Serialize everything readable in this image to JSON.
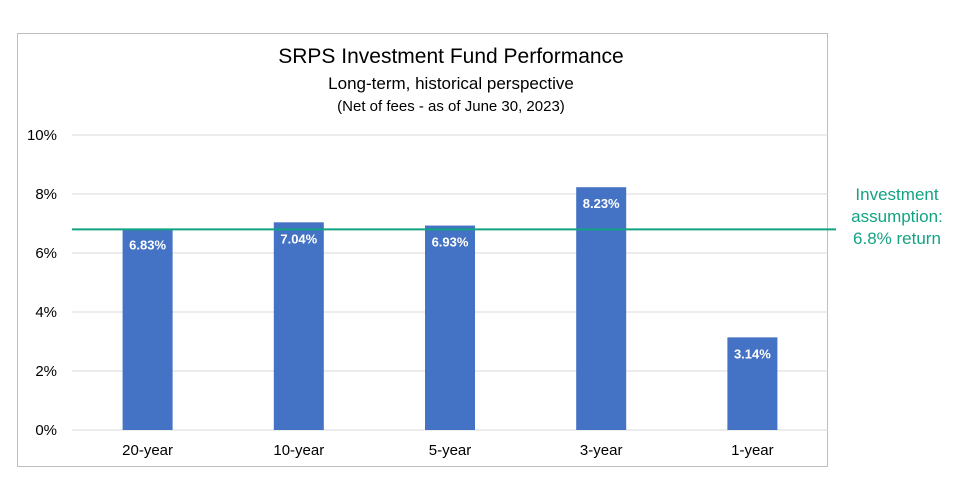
{
  "chart_data": {
    "type": "bar",
    "title": "SRPS Investment Fund Performance",
    "subtitle": "Long-term, historical perspective",
    "subtitle2": "(Net of fees - as of June 30, 2023)",
    "categories": [
      "20-year",
      "10-year",
      "5-year",
      "3-year",
      "1-year"
    ],
    "values": [
      6.83,
      7.04,
      6.93,
      8.23,
      3.14
    ],
    "data_labels": [
      "6.83%",
      "7.04%",
      "6.93%",
      "8.23%",
      "3.14%"
    ],
    "xlabel": "",
    "ylabel": "",
    "ylim": [
      0,
      10
    ],
    "yticks": [
      0,
      2,
      4,
      6,
      8,
      10
    ],
    "ytick_labels": [
      "0%",
      "2%",
      "4%",
      "6%",
      "8%",
      "10%"
    ],
    "grid": true,
    "bar_color": "#4472c4",
    "reference_line": {
      "value": 6.8,
      "color": "#12a383",
      "label_lines": [
        "Investment",
        "assumption:",
        "6.8% return"
      ]
    }
  }
}
